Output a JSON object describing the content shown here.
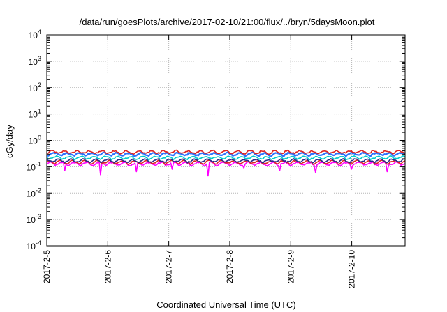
{
  "chart_data": {
    "type": "line",
    "title": "/data/run/goesPlots/archive/2017-02-10/21:00/flux/../bryn/5daysMoon.plot",
    "xlabel": "Coordinated Universal Time (UTC)",
    "ylabel": "cGy/day",
    "y_scale": "log",
    "ylim": [
      0.0001,
      10000
    ],
    "y_ticks": [
      {
        "value": 0.0001,
        "base": "10",
        "exp": "-4"
      },
      {
        "value": 0.001,
        "base": "10",
        "exp": "-3"
      },
      {
        "value": 0.01,
        "base": "10",
        "exp": "-2"
      },
      {
        "value": 0.1,
        "base": "10",
        "exp": "-1"
      },
      {
        "value": 1,
        "base": "10",
        "exp": "0"
      },
      {
        "value": 10,
        "base": "10",
        "exp": "1"
      },
      {
        "value": 100,
        "base": "10",
        "exp": "2"
      },
      {
        "value": 1000,
        "base": "10",
        "exp": "3"
      },
      {
        "value": 10000,
        "base": "10",
        "exp": "4"
      }
    ],
    "xlim": [
      "2017-02-05T00:00",
      "2017-02-10T21:00"
    ],
    "x_ticks": [
      "2017-2-5",
      "2017-2-6",
      "2017-2-7",
      "2017-2-8",
      "2017-2-9",
      "2017-2-10"
    ],
    "grid": true,
    "series": [
      {
        "color": "#ff00ff",
        "baseline": 0.13,
        "dips": [
          0.07,
          0.05,
          0.065,
          0.08,
          0.045,
          0.09,
          0.07,
          0.06,
          0.08,
          0.065
        ]
      },
      {
        "color": "#dd2222",
        "baseline": 0.15
      },
      {
        "color": "#2a2a8a",
        "baseline": 0.17
      },
      {
        "color": "#00cccc",
        "baseline": 0.22
      },
      {
        "color": "#2a72ff",
        "baseline": 0.3
      },
      {
        "color": "#dd2222",
        "baseline": 0.36
      }
    ]
  }
}
